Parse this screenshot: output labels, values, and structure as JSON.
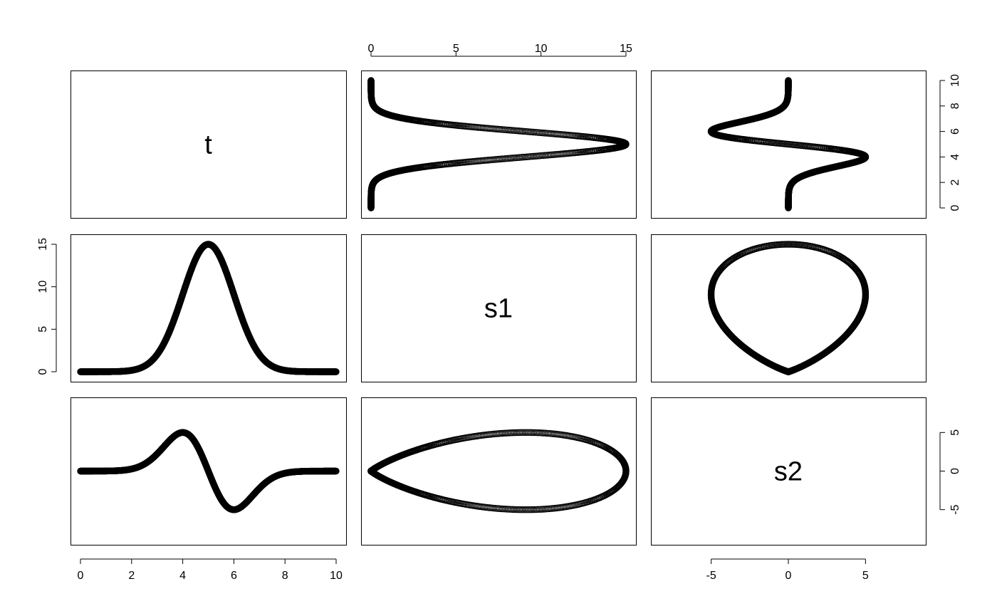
{
  "chart_data": {
    "type": "scatter",
    "layout": "pairs-matrix",
    "variables": [
      "t",
      "s1",
      "s2"
    ],
    "point_color": "#000000",
    "background": "#ffffff",
    "definitions": {
      "t": "0 to 10",
      "s1": "15 * exp(-0.5 * (t - 5)^2)",
      "s2": "-15 * (t - 5) * exp(-0.5 * (t - 5)^2) * 0.55"
    },
    "n_points": 1001,
    "axis_ranges": {
      "t": [
        0,
        10
      ],
      "s1": [
        0,
        15
      ],
      "s2": [
        -8.26,
        8.26
      ]
    },
    "ticks": {
      "t": {
        "values": [
          0,
          2,
          4,
          6,
          8,
          10
        ],
        "labels": [
          "0",
          "2",
          "4",
          "6",
          "8",
          "10"
        ]
      },
      "t_right": {
        "values": [
          0,
          2,
          4,
          6,
          8,
          10
        ],
        "labels": [
          "0",
          "2",
          "4",
          "6",
          "8",
          "10"
        ]
      },
      "s1_top": {
        "values": [
          0,
          5,
          10,
          15
        ],
        "labels": [
          "0",
          "5",
          "10",
          "15"
        ]
      },
      "s1_left": {
        "values": [
          0,
          5,
          10,
          15
        ],
        "labels": [
          "0",
          "5",
          "10",
          "15"
        ]
      },
      "s2_bottom": {
        "values": [
          -5,
          0,
          5
        ],
        "labels": [
          "-5",
          "0",
          "5"
        ]
      },
      "s2_right": {
        "values": [
          -5,
          0,
          5
        ],
        "labels": [
          "-5",
          "0",
          "5"
        ]
      }
    },
    "panels": [
      {
        "row": 0,
        "col": 0,
        "kind": "label",
        "text": "t"
      },
      {
        "row": 0,
        "col": 1,
        "kind": "scatter",
        "x": "s1",
        "y": "t"
      },
      {
        "row": 0,
        "col": 2,
        "kind": "scatter",
        "x": "s2",
        "y": "t"
      },
      {
        "row": 1,
        "col": 0,
        "kind": "scatter",
        "x": "t",
        "y": "s1"
      },
      {
        "row": 1,
        "col": 1,
        "kind": "label",
        "text": "s1"
      },
      {
        "row": 1,
        "col": 2,
        "kind": "scatter",
        "x": "s2",
        "y": "s1"
      },
      {
        "row": 2,
        "col": 0,
        "kind": "scatter",
        "x": "t",
        "y": "s2"
      },
      {
        "row": 2,
        "col": 1,
        "kind": "scatter",
        "x": "s1",
        "y": "s2"
      },
      {
        "row": 2,
        "col": 2,
        "kind": "label",
        "text": "s2"
      }
    ],
    "axes_shown": [
      {
        "side": "top",
        "col": 1,
        "ticks": "s1_top"
      },
      {
        "side": "right",
        "row": 0,
        "ticks": "t_right"
      },
      {
        "side": "left",
        "row": 1,
        "ticks": "s1_left"
      },
      {
        "side": "bottom",
        "col": 0,
        "ticks": "t"
      },
      {
        "side": "bottom",
        "col": 2,
        "ticks": "s2_bottom"
      },
      {
        "side": "right",
        "row": 2,
        "ticks": "s2_right"
      }
    ],
    "title": "",
    "xlabel": "",
    "ylabel": "",
    "grid": false,
    "legend": "none"
  }
}
